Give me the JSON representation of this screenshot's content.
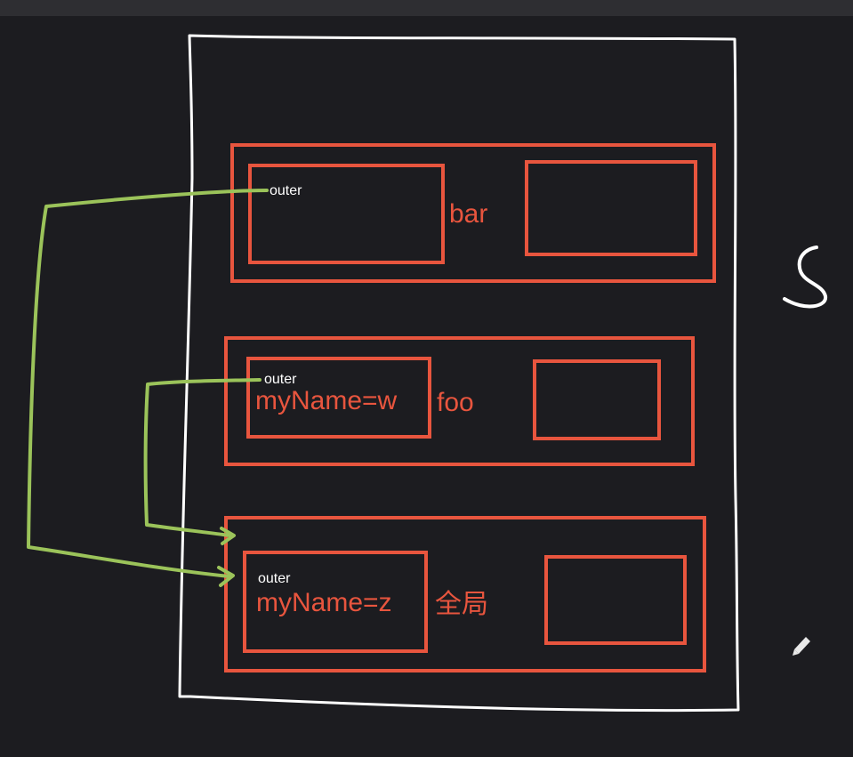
{
  "contexts": [
    {
      "name": "bar",
      "outer_label": "outer",
      "var_text": ""
    },
    {
      "name": "foo",
      "outer_label": "outer",
      "var_text": "myName=w"
    },
    {
      "name": "全局",
      "outer_label": "outer",
      "var_text": "myName=z"
    }
  ],
  "colors": {
    "background": "#1c1c20",
    "context_box": "#e8553e",
    "stack_outline": "#ffffff",
    "scope_arrow": "#9bc35a"
  },
  "icons": [
    "pencil-icon"
  ],
  "handwritten_symbol": "S"
}
